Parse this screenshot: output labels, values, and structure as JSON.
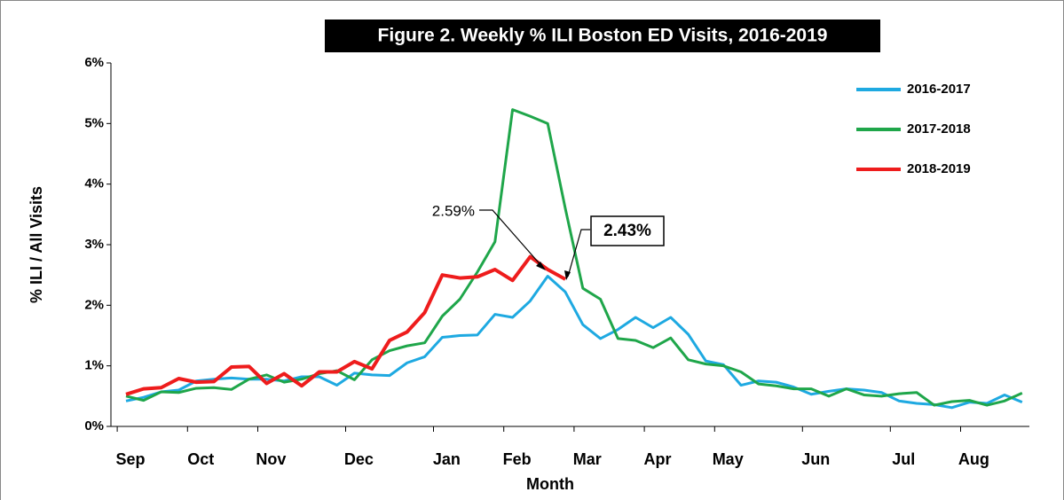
{
  "chart_data": {
    "type": "line",
    "title": "Figure 2. Weekly % ILI Boston ED Visits, 2016-2019",
    "x_label": "Month",
    "y_label": "% ILI / All Visits",
    "categories": [
      "Sep",
      null,
      null,
      null,
      "Oct",
      null,
      null,
      null,
      "Nov",
      null,
      null,
      null,
      null,
      "Dec",
      null,
      null,
      null,
      null,
      "Jan",
      null,
      null,
      null,
      "Feb",
      null,
      null,
      null,
      "Mar",
      null,
      null,
      null,
      "Apr",
      null,
      null,
      null,
      "May",
      null,
      null,
      null,
      null,
      "Jun",
      null,
      null,
      null,
      null,
      "Jul",
      null,
      null,
      null,
      "Aug",
      null,
      null,
      null
    ],
    "series": [
      {
        "name": "2016-2017",
        "color": "#1ea9e1",
        "values": [
          0.42,
          0.48,
          0.57,
          0.6,
          0.75,
          0.78,
          0.8,
          0.78,
          0.78,
          0.75,
          0.82,
          0.82,
          0.68,
          0.88,
          0.85,
          0.84,
          1.05,
          1.15,
          1.47,
          1.5,
          1.51,
          1.85,
          1.8,
          2.07,
          2.48,
          2.22,
          1.68,
          1.45,
          1.6,
          1.8,
          1.63,
          1.8,
          1.52,
          1.08,
          1.02,
          0.68,
          0.75,
          0.73,
          0.65,
          0.53,
          0.58,
          0.62,
          0.6,
          0.56,
          0.42,
          0.38,
          0.36,
          0.31,
          0.4,
          0.38,
          0.52,
          0.4
        ]
      },
      {
        "name": "2017-2018",
        "color": "#1fa64a",
        "values": [
          0.5,
          0.43,
          0.57,
          0.56,
          0.63,
          0.64,
          0.61,
          0.78,
          0.85,
          0.73,
          0.78,
          0.87,
          0.92,
          0.77,
          1.1,
          1.25,
          1.33,
          1.38,
          1.82,
          2.1,
          2.55,
          3.05,
          5.23,
          5.12,
          5.0,
          3.6,
          2.28,
          2.1,
          1.45,
          1.42,
          1.3,
          1.46,
          1.1,
          1.03,
          1.0,
          0.9,
          0.7,
          0.67,
          0.62,
          0.62,
          0.5,
          0.62,
          0.52,
          0.5,
          0.54,
          0.56,
          0.35,
          0.41,
          0.43,
          0.35,
          0.42,
          0.55
        ]
      },
      {
        "name": "2018-2019",
        "color": "#ee1c1c",
        "values": [
          0.53,
          0.62,
          0.64,
          0.79,
          0.73,
          0.74,
          0.98,
          0.99,
          0.71,
          0.87,
          0.67,
          0.9,
          0.9,
          1.07,
          0.95,
          1.42,
          1.56,
          1.88,
          2.5,
          2.45,
          2.47,
          2.59,
          2.41,
          2.8,
          2.59,
          2.43,
          null,
          null,
          null,
          null,
          null,
          null,
          null,
          null,
          null,
          null,
          null,
          null,
          null,
          null,
          null,
          null,
          null,
          null,
          null,
          null,
          null,
          null,
          null,
          null,
          null,
          null
        ]
      }
    ],
    "ylim": [
      0,
      6
    ],
    "yticks": [
      {
        "value": 0,
        "label": "0%"
      },
      {
        "value": 1,
        "label": "1%"
      },
      {
        "value": 2,
        "label": "2%"
      },
      {
        "value": 3,
        "label": "3%"
      },
      {
        "value": 4,
        "label": "4%"
      },
      {
        "value": 5,
        "label": "5%"
      },
      {
        "value": 6,
        "label": "6%"
      }
    ],
    "annotations": [
      "2.59%",
      "2.43%"
    ],
    "legend": "upper right"
  }
}
